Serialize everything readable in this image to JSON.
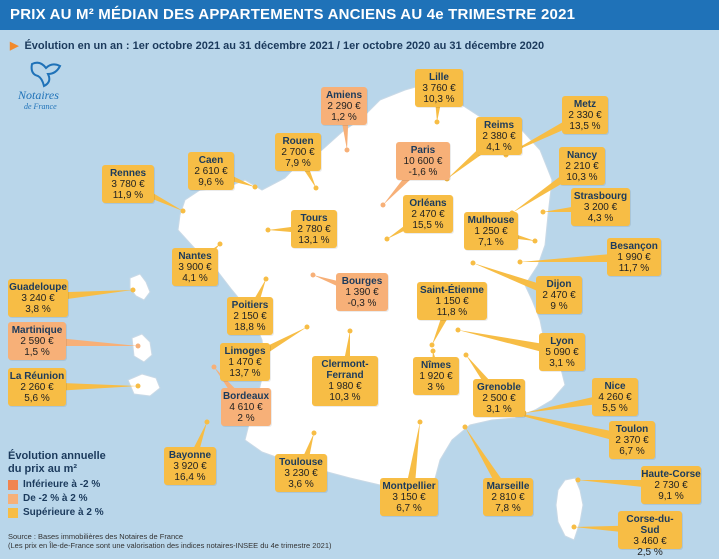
{
  "header": {
    "title": "PRIX AU M² MÉDIAN DES APPARTEMENTS ANCIENS AU 4e TRIMESTRE 2021"
  },
  "subtitle": "Évolution en un an : 1er octobre 2021 au 31 décembre 2021 / 1er octobre 2020 au 31 décembre 2020",
  "logo": {
    "line1": "Notaires",
    "line2": "de France"
  },
  "colors": {
    "header_bg": "#1f72b8",
    "sea": "#b9d6ea",
    "land": "#ffffff",
    "below_minus2": "#f08450",
    "between": "#f7b078",
    "above_2": "#f7bd45"
  },
  "cities": [
    {
      "name": "Lille",
      "price": "3 760 €",
      "change": "10,3 %",
      "category": "above_2"
    },
    {
      "name": "Amiens",
      "price": "2 290 €",
      "change": "1,2 %",
      "category": "between"
    },
    {
      "name": "Metz",
      "price": "2 330 €",
      "change": "13,5 %",
      "category": "above_2"
    },
    {
      "name": "Reims",
      "price": "2 380 €",
      "change": "4,1 %",
      "category": "above_2"
    },
    {
      "name": "Rouen",
      "price": "2 700 €",
      "change": "7,9 %",
      "category": "above_2"
    },
    {
      "name": "Paris",
      "price": "10 600 €",
      "change": "-1,6 %",
      "category": "between"
    },
    {
      "name": "Caen",
      "price": "2 610 €",
      "change": "9,6 %",
      "category": "above_2"
    },
    {
      "name": "Nancy",
      "price": "2 210 €",
      "change": "10,3 %",
      "category": "above_2"
    },
    {
      "name": "Rennes",
      "price": "3 780 €",
      "change": "11,9 %",
      "category": "above_2"
    },
    {
      "name": "Strasbourg",
      "price": "3 200 €",
      "change": "4,3 %",
      "category": "above_2"
    },
    {
      "name": "Tours",
      "price": "2 780 €",
      "change": "13,1 %",
      "category": "above_2"
    },
    {
      "name": "Orléans",
      "price": "2 470 €",
      "change": "15,5 %",
      "category": "above_2"
    },
    {
      "name": "Mulhouse",
      "price": "1 250 €",
      "change": "7,1 %",
      "category": "above_2"
    },
    {
      "name": "Nantes",
      "price": "3 900 €",
      "change": "4,1 %",
      "category": "above_2"
    },
    {
      "name": "Besançon",
      "price": "1 990 €",
      "change": "11,7 %",
      "category": "above_2"
    },
    {
      "name": "Bourges",
      "price": "1 390 €",
      "change": "-0,3 %",
      "category": "between"
    },
    {
      "name": "Dijon",
      "price": "2 470 €",
      "change": "9 %",
      "category": "above_2"
    },
    {
      "name": "Saint-Étienne",
      "price": "1 150 €",
      "change": "11,8 %",
      "category": "above_2"
    },
    {
      "name": "Poitiers",
      "price": "2 150 €",
      "change": "18,8 %",
      "category": "above_2"
    },
    {
      "name": "Lyon",
      "price": "5 090 €",
      "change": "3,1 %",
      "category": "above_2"
    },
    {
      "name": "Limoges",
      "price": "1 470 €",
      "change": "13,7 %",
      "category": "above_2"
    },
    {
      "name": "Clermont-Ferrand",
      "price": "1 980 €",
      "change": "10,3 %",
      "category": "above_2"
    },
    {
      "name": "Nîmes",
      "price": "1 920 €",
      "change": "3 %",
      "category": "above_2"
    },
    {
      "name": "Grenoble",
      "price": "2 500 €",
      "change": "3,1 %",
      "category": "above_2"
    },
    {
      "name": "Nice",
      "price": "4 260 €",
      "change": "5,5 %",
      "category": "above_2"
    },
    {
      "name": "Bordeaux",
      "price": "4 610 €",
      "change": "2 %",
      "category": "between"
    },
    {
      "name": "Toulon",
      "price": "2 370 €",
      "change": "6,7 %",
      "category": "above_2"
    },
    {
      "name": "Bayonne",
      "price": "3 920 €",
      "change": "16,4 %",
      "category": "above_2"
    },
    {
      "name": "Toulouse",
      "price": "3 230 €",
      "change": "3,6 %",
      "category": "above_2"
    },
    {
      "name": "Haute-Corse",
      "price": "2 730 €",
      "change": "9,1 %",
      "category": "above_2"
    },
    {
      "name": "Montpellier",
      "price": "3 150 €",
      "change": "6,7 %",
      "category": "above_2"
    },
    {
      "name": "Marseille",
      "price": "2 810 €",
      "change": "7,8 %",
      "category": "above_2"
    },
    {
      "name": "Corse-du-Sud",
      "price": "3 460 €",
      "change": "2,5 %",
      "category": "above_2"
    },
    {
      "name": "Guadeloupe",
      "price": "3 240 €",
      "change": "3,8 %",
      "category": "above_2"
    },
    {
      "name": "Martinique",
      "price": "2 590 €",
      "change": "1,5 %",
      "category": "between"
    },
    {
      "name": "La Réunion",
      "price": "2 260 €",
      "change": "5,6 %",
      "category": "above_2"
    }
  ],
  "legend": {
    "title_line1": "Évolution annuelle",
    "title_line2": "du prix au m²",
    "items": [
      {
        "label": "Inférieure à -2 %",
        "category": "below_minus2"
      },
      {
        "label": "De -2 % à 2 %",
        "category": "between"
      },
      {
        "label": "Supérieure à 2 %",
        "category": "above_2"
      }
    ]
  },
  "source": {
    "line1": "Source : Bases immobilières des Notaires de France",
    "line2": "(Les prix en Île-de-France sont une valorisation des indices notaires-INSEE du 4e trimestre 2021)"
  }
}
